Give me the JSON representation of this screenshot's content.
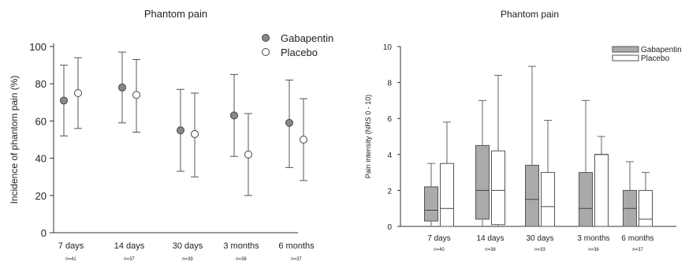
{
  "chart_data": [
    {
      "type": "scatter",
      "title": "Phantom pain",
      "ylabel": "Incidence of phantom pain (%)",
      "xlabel": "",
      "ylim": [
        0,
        100
      ],
      "yticks": [
        0,
        20,
        40,
        60,
        80,
        100
      ],
      "categories": [
        "7 days",
        "14 days",
        "30 days",
        "3 months",
        "6 months"
      ],
      "n_labels": [
        "n=41",
        "n=37",
        "n=39",
        "n=38",
        "n=37"
      ],
      "legend_position": "top-right",
      "grid": false,
      "series": [
        {
          "name": "Gabapentin",
          "values": [
            71,
            78,
            55,
            63,
            59
          ],
          "lower": [
            52,
            59,
            33,
            41,
            35
          ],
          "upper": [
            90,
            97,
            77,
            85,
            82
          ],
          "color": "#888888"
        },
        {
          "name": "Placebo",
          "values": [
            75,
            74,
            53,
            42,
            50
          ],
          "lower": [
            56,
            54,
            30,
            20,
            28
          ],
          "upper": [
            94,
            93,
            75,
            64,
            72
          ],
          "color": "#ffffff"
        }
      ]
    },
    {
      "type": "box",
      "title": "Phantom pain",
      "ylabel": "Pain intensity (NRS 0 - 10)",
      "xlabel": "",
      "ylim": [
        0,
        10
      ],
      "yticks": [
        0,
        2,
        4,
        6,
        8,
        10
      ],
      "categories": [
        "7 days",
        "14 days",
        "30 days",
        "3 months",
        "6 months"
      ],
      "n_labels": [
        "n=40",
        "n=38",
        "n=33",
        "n=38",
        "n=37"
      ],
      "legend_position": "top-right",
      "grid": false,
      "series": [
        {
          "name": "Gabapentin",
          "color": "#aaaaaa",
          "boxes": [
            {
              "min": 0,
              "q1": 0.3,
              "median": 0.9,
              "q3": 2.2,
              "max": 3.5
            },
            {
              "min": 0,
              "q1": 0.4,
              "median": 2.0,
              "q3": 4.5,
              "max": 7.0
            },
            {
              "min": 0,
              "q1": 0,
              "median": 1.5,
              "q3": 3.4,
              "max": 8.9
            },
            {
              "min": 0,
              "q1": 0,
              "median": 1.0,
              "q3": 3.0,
              "max": 7.0
            },
            {
              "min": 0,
              "q1": 0,
              "median": 1.0,
              "q3": 2.0,
              "max": 3.6
            }
          ]
        },
        {
          "name": "Placebo",
          "color": "#ffffff",
          "boxes": [
            {
              "min": 0,
              "q1": 0,
              "median": 1.0,
              "q3": 3.5,
              "max": 5.8
            },
            {
              "min": 0,
              "q1": 0.1,
              "median": 2.0,
              "q3": 4.2,
              "max": 8.4
            },
            {
              "min": 0,
              "q1": 0,
              "median": 1.1,
              "q3": 3.0,
              "max": 5.9
            },
            {
              "min": 0,
              "q1": 0,
              "median": 4.0,
              "q3": 4.0,
              "max": 5.0
            },
            {
              "min": 0,
              "q1": 0,
              "median": 0.4,
              "q3": 2.0,
              "max": 3.0
            }
          ]
        }
      ]
    }
  ]
}
